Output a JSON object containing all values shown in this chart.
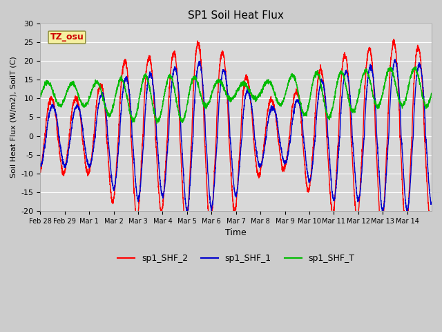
{
  "title": "SP1 Soil Heat Flux",
  "xlabel": "Time",
  "ylabel": "Soil Heat Flux (W/m2), SoilT (C)",
  "ylim": [
    -20,
    30
  ],
  "fig_bg_color": "#cccccc",
  "plot_bg_color": "#d8d8d8",
  "tz_label": "TZ_osu",
  "tz_box_facecolor": "#f5f0a0",
  "tz_box_edgecolor": "#888833",
  "tz_text_color": "#cc0000",
  "legend_entries": [
    "sp1_SHF_2",
    "sp1_SHF_1",
    "sp1_SHF_T"
  ],
  "line_colors": [
    "#ff0000",
    "#0000cc",
    "#00bb00"
  ],
  "xtick_labels": [
    "Feb 28",
    "Feb 29",
    "Mar 1",
    "Mar 2",
    "Mar 3",
    "Mar 4",
    "Mar 5",
    "Mar 6",
    "Mar 7",
    "Mar 8",
    "Mar 9",
    "Mar 10",
    "Mar 11",
    "Mar 12",
    "Mar 13",
    "Mar 14"
  ],
  "ytick_values": [
    -20,
    -15,
    -10,
    -5,
    0,
    5,
    10,
    15,
    20,
    25,
    30
  ],
  "num_days": 16
}
